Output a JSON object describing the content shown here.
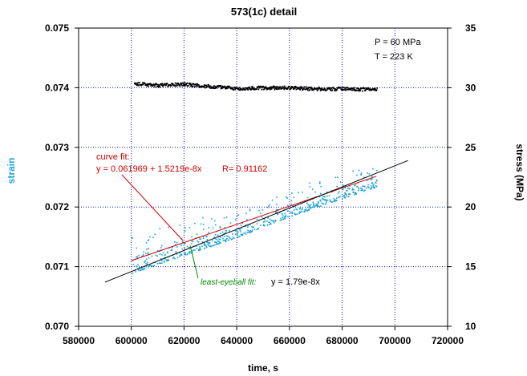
{
  "chart_data": {
    "type": "scatter",
    "title": "573(1c) detail",
    "xlabel": "time, s",
    "ylabel_left": "strain",
    "ylabel_right": "stress (MPa)",
    "xlim": [
      580000,
      720000
    ],
    "ylim_left": [
      0.07,
      0.075
    ],
    "ylim_right": [
      10,
      35
    ],
    "x_ticks": [
      "580000",
      "600000",
      "620000",
      "640000",
      "660000",
      "680000",
      "700000",
      "720000"
    ],
    "y_ticks_left": [
      "0.070",
      "0.071",
      "0.072",
      "0.073",
      "0.074",
      "0.075"
    ],
    "y_ticks_right": [
      "10",
      "15",
      "20",
      "25",
      "30",
      "35"
    ],
    "conditions": [
      "P = 60 MPa",
      "T = 223 K"
    ],
    "series": [
      {
        "name": "stress",
        "axis": "right",
        "color": "#000000",
        "x_range": [
          601000,
          693000
        ],
        "values": [
          [
            601000,
            30.4
          ],
          [
            610000,
            30.25
          ],
          [
            620000,
            30.35
          ],
          [
            630000,
            30.15
          ],
          [
            640000,
            30.0
          ],
          [
            650000,
            30.05
          ],
          [
            660000,
            30.05
          ],
          [
            670000,
            29.95
          ],
          [
            680000,
            29.95
          ],
          [
            693000,
            29.9
          ]
        ]
      },
      {
        "name": "strain",
        "axis": "left",
        "color": "#1aa3d6",
        "x_range": [
          600000,
          693000
        ],
        "lower_envelope": [
          [
            600000,
            0.0709
          ],
          [
            620000,
            0.0712
          ],
          [
            640000,
            0.0715
          ],
          [
            660000,
            0.07185
          ],
          [
            680000,
            0.07215
          ],
          [
            693000,
            0.07235
          ]
        ],
        "upper_envelope": [
          [
            600000,
            0.0715
          ],
          [
            620000,
            0.0718
          ],
          [
            640000,
            0.0719
          ],
          [
            660000,
            0.0723
          ],
          [
            680000,
            0.07265
          ],
          [
            693000,
            0.0727
          ]
        ]
      }
    ],
    "fits": [
      {
        "name": "curve fit",
        "color": "#cc0000",
        "label": "curve fit:",
        "equation": "y = 0.061969 + 1.5219e-8x",
        "r": "R= 0.91162",
        "intercept": 0.061969,
        "slope": 1.5219e-08,
        "x_range": [
          600000,
          693000
        ]
      },
      {
        "name": "least-eyeball fit",
        "color": "#000000",
        "label_color": "#008800",
        "label": "least-eyeball fit:",
        "equation": "y = 1.79e-8x",
        "points": [
          [
            590000,
            0.07074
          ],
          [
            705000,
            0.07278
          ]
        ]
      }
    ],
    "colors": {
      "grid": "#1010cc",
      "strain_label": "#1aa3d6",
      "stress": "#000000",
      "curve_fit": "#cc0000",
      "eyeball_label": "#008800"
    }
  }
}
